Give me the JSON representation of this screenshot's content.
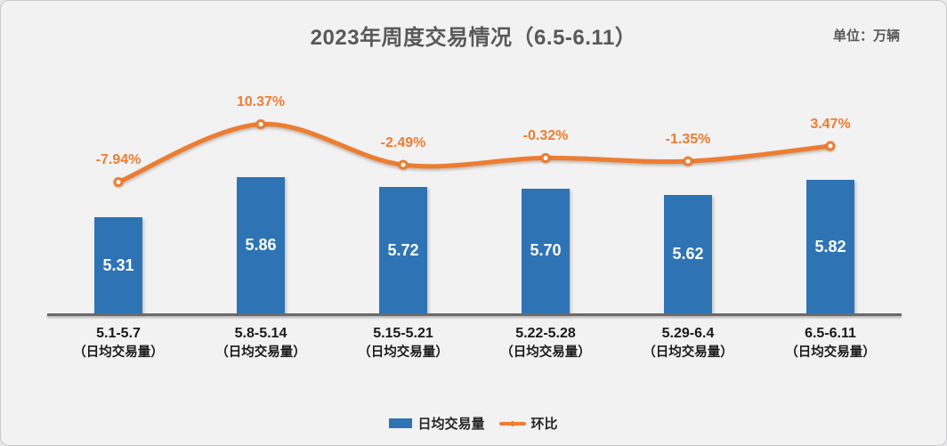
{
  "chart_data": {
    "type": "combo_bar_line",
    "title": "2023年周度交易情况（6.5-6.11）",
    "unit_label": "单位：万辆",
    "categories": [
      "5.1-5.7",
      "5.8-5.14",
      "5.15-5.21",
      "5.22-5.28",
      "5.29-6.4",
      "6.5-6.11"
    ],
    "category_sublabel": "（日均交易量）",
    "series": [
      {
        "name": "日均交易量",
        "type": "bar",
        "color": "#2E74B5",
        "values": [
          5.31,
          5.86,
          5.72,
          5.7,
          5.62,
          5.82
        ],
        "labels": [
          "5.31",
          "5.86",
          "5.72",
          "5.70",
          "5.62",
          "5.82"
        ]
      },
      {
        "name": "环比",
        "type": "line",
        "color": "#ED7D31",
        "values_pct": [
          -7.94,
          10.37,
          -2.49,
          -0.32,
          -1.35,
          3.47
        ],
        "labels": [
          "-7.94%",
          "10.37%",
          "-2.49%",
          "-0.32%",
          "-1.35%",
          "3.47%"
        ]
      }
    ],
    "bar_axis": {
      "min": 4.0,
      "max": 6.5,
      "visible": false
    },
    "line_axis": {
      "visible": false
    },
    "grid": false,
    "legend_position": "bottom",
    "colors": {
      "background": "#F2F2F2",
      "bar": "#2E74B5",
      "line": "#ED7D31",
      "title": "#595959",
      "axis": "#6A6A6A",
      "bar_value_text": "#FFFFFF",
      "x_label_text": "#1A1A1A"
    }
  }
}
